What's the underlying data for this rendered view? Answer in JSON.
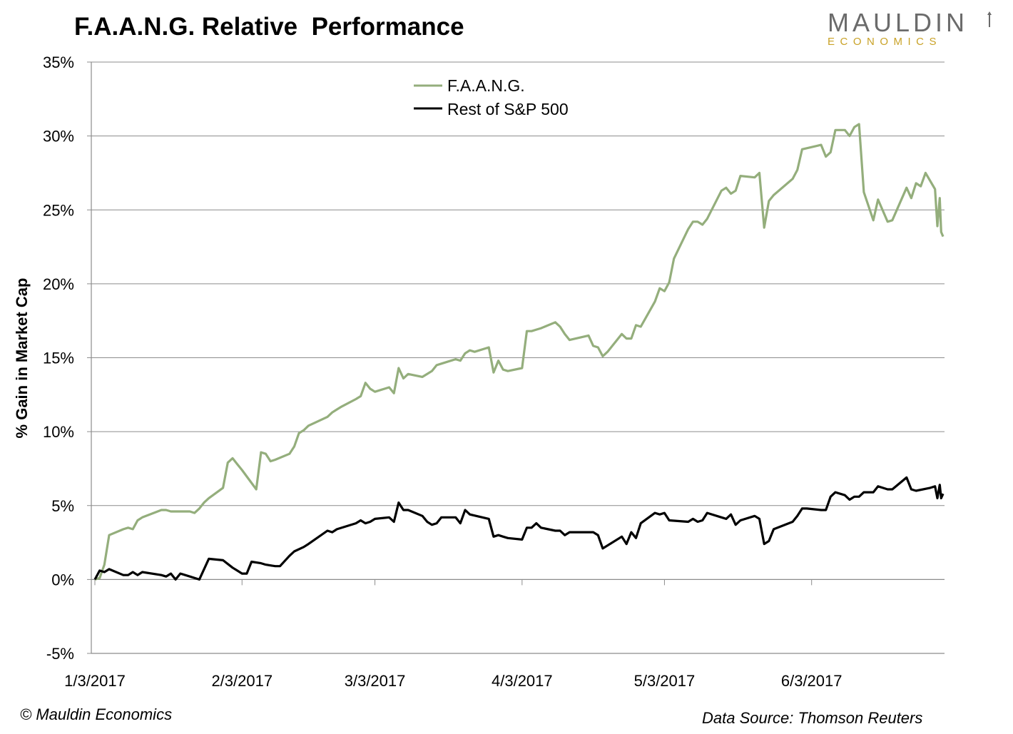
{
  "header": {
    "title": "F.A.A.N.G. Relative  Performance",
    "logo_top": "MAULDIN",
    "logo_bottom": "ECONOMICS"
  },
  "footer": {
    "copyright": "© Mauldin Economics",
    "source": "Data Source: Thomson Reuters"
  },
  "colors": {
    "faang": "#94ae7c",
    "rest": "#000000",
    "grid": "#8c8c8c",
    "logo_gray": "#6b6b6b",
    "logo_gold": "#c9a227"
  },
  "chart_data": {
    "type": "line",
    "title": "F.A.A.N.G. Relative  Performance",
    "ylabel": "% Gain in Market Cap",
    "xlabel": "",
    "ylim": [
      -5,
      35
    ],
    "yticks": [
      -5,
      0,
      5,
      10,
      15,
      20,
      25,
      30,
      35
    ],
    "ytick_labels": [
      "-5%",
      "0%",
      "5%",
      "10%",
      "15%",
      "20%",
      "25%",
      "30%",
      "35%"
    ],
    "xticks": [
      "2017-01-03",
      "2017-02-03",
      "2017-03-03",
      "2017-04-03",
      "2017-05-03",
      "2017-06-03"
    ],
    "xtick_labels": [
      "1/3/2017",
      "2/3/2017",
      "3/3/2017",
      "4/3/2017",
      "5/3/2017",
      "6/3/2017"
    ],
    "xlim": [
      "2017-01-03",
      "2017-06-30"
    ],
    "grid": "horizontal",
    "legend_position": "top-center",
    "series": [
      {
        "name": "F.A.A.N.G.",
        "color": "#94ae7c",
        "points": [
          [
            "2017-01-03",
            0.0
          ],
          [
            "2017-01-04",
            0.1
          ],
          [
            "2017-01-05",
            1.0
          ],
          [
            "2017-01-06",
            3.0
          ],
          [
            "2017-01-09",
            3.4
          ],
          [
            "2017-01-10",
            3.5
          ],
          [
            "2017-01-11",
            3.4
          ],
          [
            "2017-01-12",
            4.0
          ],
          [
            "2017-01-13",
            4.2
          ],
          [
            "2017-01-17",
            4.7
          ],
          [
            "2017-01-18",
            4.7
          ],
          [
            "2017-01-19",
            4.6
          ],
          [
            "2017-01-20",
            4.6
          ],
          [
            "2017-01-23",
            4.6
          ],
          [
            "2017-01-24",
            4.5
          ],
          [
            "2017-01-25",
            4.8
          ],
          [
            "2017-01-26",
            5.2
          ],
          [
            "2017-01-27",
            5.5
          ],
          [
            "2017-01-30",
            6.2
          ],
          [
            "2017-01-31",
            7.9
          ],
          [
            "2017-02-01",
            8.2
          ],
          [
            "2017-02-02",
            7.8
          ],
          [
            "2017-02-03",
            7.4
          ],
          [
            "2017-02-06",
            6.1
          ],
          [
            "2017-02-07",
            8.6
          ],
          [
            "2017-02-08",
            8.5
          ],
          [
            "2017-02-09",
            8.0
          ],
          [
            "2017-02-10",
            8.1
          ],
          [
            "2017-02-13",
            8.5
          ],
          [
            "2017-02-14",
            9.0
          ],
          [
            "2017-02-15",
            9.9
          ],
          [
            "2017-02-16",
            10.1
          ],
          [
            "2017-02-17",
            10.4
          ],
          [
            "2017-02-21",
            11.0
          ],
          [
            "2017-02-22",
            11.3
          ],
          [
            "2017-02-23",
            11.5
          ],
          [
            "2017-02-24",
            11.7
          ],
          [
            "2017-02-27",
            12.2
          ],
          [
            "2017-02-28",
            12.4
          ],
          [
            "2017-03-01",
            13.3
          ],
          [
            "2017-03-02",
            12.9
          ],
          [
            "2017-03-03",
            12.7
          ],
          [
            "2017-03-06",
            13.0
          ],
          [
            "2017-03-07",
            12.6
          ],
          [
            "2017-03-08",
            14.3
          ],
          [
            "2017-03-09",
            13.6
          ],
          [
            "2017-03-10",
            13.9
          ],
          [
            "2017-03-13",
            13.7
          ],
          [
            "2017-03-14",
            13.9
          ],
          [
            "2017-03-15",
            14.1
          ],
          [
            "2017-03-16",
            14.5
          ],
          [
            "2017-03-17",
            14.6
          ],
          [
            "2017-03-20",
            14.9
          ],
          [
            "2017-03-21",
            14.8
          ],
          [
            "2017-03-22",
            15.3
          ],
          [
            "2017-03-23",
            15.5
          ],
          [
            "2017-03-24",
            15.4
          ],
          [
            "2017-03-27",
            15.7
          ],
          [
            "2017-03-28",
            14.0
          ],
          [
            "2017-03-29",
            14.8
          ],
          [
            "2017-03-30",
            14.2
          ],
          [
            "2017-03-31",
            14.1
          ],
          [
            "2017-04-03",
            14.3
          ],
          [
            "2017-04-04",
            16.8
          ],
          [
            "2017-04-05",
            16.8
          ],
          [
            "2017-04-06",
            16.9
          ],
          [
            "2017-04-07",
            17.0
          ],
          [
            "2017-04-10",
            17.4
          ],
          [
            "2017-04-11",
            17.1
          ],
          [
            "2017-04-12",
            16.6
          ],
          [
            "2017-04-13",
            16.2
          ],
          [
            "2017-04-17",
            16.5
          ],
          [
            "2017-04-18",
            15.8
          ],
          [
            "2017-04-19",
            15.7
          ],
          [
            "2017-04-20",
            15.1
          ],
          [
            "2017-04-21",
            15.4
          ],
          [
            "2017-04-24",
            16.6
          ],
          [
            "2017-04-25",
            16.3
          ],
          [
            "2017-04-26",
            16.3
          ],
          [
            "2017-04-27",
            17.2
          ],
          [
            "2017-04-28",
            17.1
          ],
          [
            "2017-05-01",
            18.8
          ],
          [
            "2017-05-02",
            19.7
          ],
          [
            "2017-05-03",
            19.5
          ],
          [
            "2017-05-04",
            20.1
          ],
          [
            "2017-05-05",
            21.7
          ],
          [
            "2017-05-08",
            23.7
          ],
          [
            "2017-05-09",
            24.2
          ],
          [
            "2017-05-10",
            24.2
          ],
          [
            "2017-05-11",
            24.0
          ],
          [
            "2017-05-12",
            24.4
          ],
          [
            "2017-05-15",
            26.3
          ],
          [
            "2017-05-16",
            26.5
          ],
          [
            "2017-05-17",
            26.1
          ],
          [
            "2017-05-18",
            26.3
          ],
          [
            "2017-05-19",
            27.3
          ],
          [
            "2017-05-22",
            27.2
          ],
          [
            "2017-05-23",
            27.5
          ],
          [
            "2017-05-24",
            23.8
          ],
          [
            "2017-05-25",
            25.6
          ],
          [
            "2017-05-26",
            26.0
          ],
          [
            "2017-05-30",
            27.1
          ],
          [
            "2017-05-31",
            27.7
          ],
          [
            "2017-06-01",
            29.1
          ],
          [
            "2017-06-05",
            29.4
          ],
          [
            "2017-06-06",
            28.6
          ],
          [
            "2017-06-07",
            28.9
          ],
          [
            "2017-06-08",
            30.4
          ],
          [
            "2017-06-09",
            30.4
          ],
          [
            "2017-06-10",
            30.4
          ],
          [
            "2017-06-11",
            30.0
          ],
          [
            "2017-06-12",
            30.6
          ],
          [
            "2017-06-13",
            30.8
          ],
          [
            "2017-06-14",
            26.2
          ],
          [
            "2017-06-16",
            24.3
          ],
          [
            "2017-06-17",
            25.7
          ],
          [
            "2017-06-19",
            24.2
          ],
          [
            "2017-06-20",
            24.3
          ],
          [
            "2017-06-23",
            26.5
          ],
          [
            "2017-06-24",
            25.8
          ],
          [
            "2017-06-25",
            26.8
          ],
          [
            "2017-06-26",
            26.6
          ],
          [
            "2017-06-27",
            27.5
          ],
          [
            "2017-06-29",
            26.4
          ],
          [
            "2017-06-29.5",
            23.9
          ],
          [
            "2017-06-30",
            25.8
          ],
          [
            "2017-06-30.3",
            23.5
          ],
          [
            "2017-06-30.7",
            23.2
          ]
        ]
      },
      {
        "name": "Rest of S&P 500",
        "color": "#000000",
        "points": [
          [
            "2017-01-03",
            0.0
          ],
          [
            "2017-01-04",
            0.6
          ],
          [
            "2017-01-05",
            0.5
          ],
          [
            "2017-01-06",
            0.7
          ],
          [
            "2017-01-09",
            0.3
          ],
          [
            "2017-01-10",
            0.3
          ],
          [
            "2017-01-11",
            0.5
          ],
          [
            "2017-01-12",
            0.3
          ],
          [
            "2017-01-13",
            0.5
          ],
          [
            "2017-01-17",
            0.3
          ],
          [
            "2017-01-18",
            0.2
          ],
          [
            "2017-01-19",
            0.4
          ],
          [
            "2017-01-20",
            0.0
          ],
          [
            "2017-01-21",
            0.4
          ],
          [
            "2017-01-23",
            0.2
          ],
          [
            "2017-01-25",
            0.0
          ],
          [
            "2017-01-27",
            1.4
          ],
          [
            "2017-01-30",
            1.3
          ],
          [
            "2017-02-01",
            0.8
          ],
          [
            "2017-02-02",
            0.6
          ],
          [
            "2017-02-03",
            0.4
          ],
          [
            "2017-02-04",
            0.4
          ],
          [
            "2017-02-05",
            1.2
          ],
          [
            "2017-02-07",
            1.1
          ],
          [
            "2017-02-08",
            1.0
          ],
          [
            "2017-02-10",
            0.9
          ],
          [
            "2017-02-11",
            0.9
          ],
          [
            "2017-02-13",
            1.6
          ],
          [
            "2017-02-14",
            1.9
          ],
          [
            "2017-02-16",
            2.2
          ],
          [
            "2017-02-17",
            2.4
          ],
          [
            "2017-02-21",
            3.3
          ],
          [
            "2017-02-22",
            3.2
          ],
          [
            "2017-02-23",
            3.4
          ],
          [
            "2017-02-27",
            3.8
          ],
          [
            "2017-02-28",
            4.0
          ],
          [
            "2017-03-01",
            3.8
          ],
          [
            "2017-03-02",
            3.9
          ],
          [
            "2017-03-03",
            4.1
          ],
          [
            "2017-03-06",
            4.2
          ],
          [
            "2017-03-07",
            3.9
          ],
          [
            "2017-03-08",
            5.2
          ],
          [
            "2017-03-09",
            4.7
          ],
          [
            "2017-03-10",
            4.7
          ],
          [
            "2017-03-13",
            4.3
          ],
          [
            "2017-03-14",
            3.9
          ],
          [
            "2017-03-15",
            3.7
          ],
          [
            "2017-03-16",
            3.8
          ],
          [
            "2017-03-17",
            4.2
          ],
          [
            "2017-03-20",
            4.2
          ],
          [
            "2017-03-21",
            3.8
          ],
          [
            "2017-03-22",
            4.7
          ],
          [
            "2017-03-23",
            4.4
          ],
          [
            "2017-03-27",
            4.1
          ],
          [
            "2017-03-28",
            2.9
          ],
          [
            "2017-03-29",
            3.0
          ],
          [
            "2017-03-30",
            2.9
          ],
          [
            "2017-03-31",
            2.8
          ],
          [
            "2017-04-03",
            2.7
          ],
          [
            "2017-04-04",
            3.5
          ],
          [
            "2017-04-05",
            3.5
          ],
          [
            "2017-04-06",
            3.8
          ],
          [
            "2017-04-07",
            3.5
          ],
          [
            "2017-04-10",
            3.3
          ],
          [
            "2017-04-11",
            3.3
          ],
          [
            "2017-04-12",
            3.0
          ],
          [
            "2017-04-13",
            3.2
          ],
          [
            "2017-04-17",
            3.2
          ],
          [
            "2017-04-18",
            3.2
          ],
          [
            "2017-04-19",
            3.0
          ],
          [
            "2017-04-20",
            2.1
          ],
          [
            "2017-04-24",
            2.9
          ],
          [
            "2017-04-25",
            2.4
          ],
          [
            "2017-04-26",
            3.2
          ],
          [
            "2017-04-27",
            2.8
          ],
          [
            "2017-04-28",
            3.8
          ],
          [
            "2017-05-01",
            4.5
          ],
          [
            "2017-05-02",
            4.4
          ],
          [
            "2017-05-03",
            4.5
          ],
          [
            "2017-05-04",
            4.0
          ],
          [
            "2017-05-08",
            3.9
          ],
          [
            "2017-05-09",
            4.1
          ],
          [
            "2017-05-10",
            3.9
          ],
          [
            "2017-05-11",
            4.0
          ],
          [
            "2017-05-12",
            4.5
          ],
          [
            "2017-05-15",
            4.2
          ],
          [
            "2017-05-16",
            4.1
          ],
          [
            "2017-05-17",
            4.4
          ],
          [
            "2017-05-18",
            3.7
          ],
          [
            "2017-05-19",
            4.0
          ],
          [
            "2017-05-22",
            4.3
          ],
          [
            "2017-05-23",
            4.1
          ],
          [
            "2017-05-24",
            2.4
          ],
          [
            "2017-05-25",
            2.6
          ],
          [
            "2017-05-26",
            3.4
          ],
          [
            "2017-05-30",
            3.9
          ],
          [
            "2017-05-31",
            4.3
          ],
          [
            "2017-06-01",
            4.8
          ],
          [
            "2017-06-02",
            4.8
          ],
          [
            "2017-06-05",
            4.7
          ],
          [
            "2017-06-06",
            4.7
          ],
          [
            "2017-06-07",
            5.6
          ],
          [
            "2017-06-08",
            5.9
          ],
          [
            "2017-06-10",
            5.7
          ],
          [
            "2017-06-11",
            5.4
          ],
          [
            "2017-06-12",
            5.6
          ],
          [
            "2017-06-13",
            5.6
          ],
          [
            "2017-06-14",
            5.9
          ],
          [
            "2017-06-16",
            5.9
          ],
          [
            "2017-06-17",
            6.3
          ],
          [
            "2017-06-18",
            6.2
          ],
          [
            "2017-06-19",
            6.1
          ],
          [
            "2017-06-20",
            6.1
          ],
          [
            "2017-06-23",
            6.9
          ],
          [
            "2017-06-24",
            6.1
          ],
          [
            "2017-06-25",
            6.0
          ],
          [
            "2017-06-28",
            6.2
          ],
          [
            "2017-06-29",
            6.3
          ],
          [
            "2017-06-29.5",
            5.5
          ],
          [
            "2017-06-30",
            6.4
          ],
          [
            "2017-06-30.3",
            5.5
          ],
          [
            "2017-06-30.7",
            5.8
          ]
        ]
      }
    ]
  }
}
